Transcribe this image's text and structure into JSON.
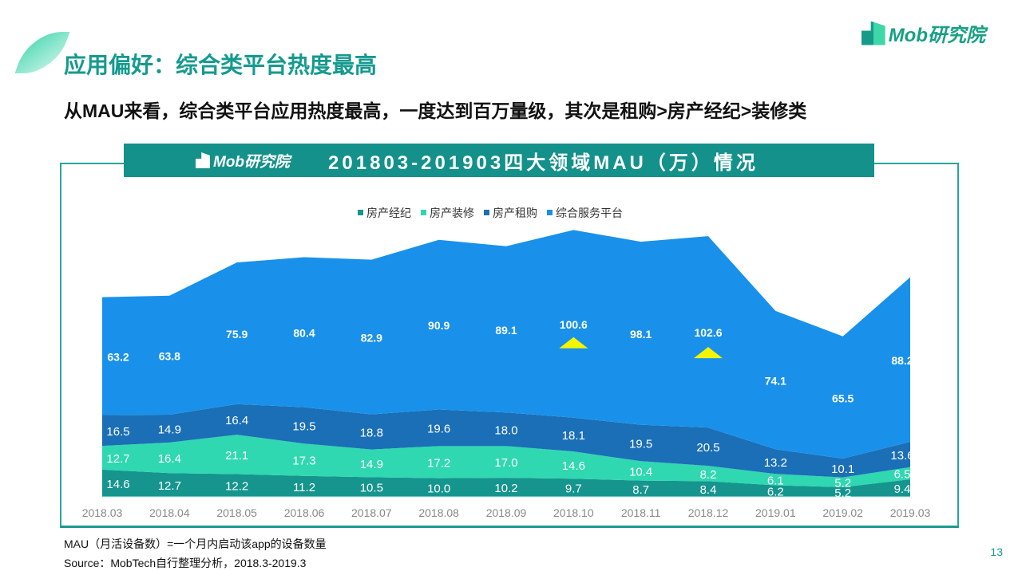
{
  "header": {
    "title": "应用偏好：综合类平台热度最高",
    "subtitle": "从MAU来看，综合类平台应用热度最高，一度达到百万量级，其次是租购>房产经纪>装修类",
    "logo": "Mob研究院"
  },
  "banner": {
    "logo": "Mob研究院",
    "title": "201803-201903四大领域MAU（万）情况"
  },
  "chart_data": {
    "type": "area",
    "stacked": true,
    "title": "201803-201903四大领域MAU（万）情况",
    "categories": [
      "2018.03",
      "2018.04",
      "2018.05",
      "2018.06",
      "2018.07",
      "2018.08",
      "2018.09",
      "2018.10",
      "2018.11",
      "2018.12",
      "2019.01",
      "2019.02",
      "2019.03"
    ],
    "series": [
      {
        "name": "房产经纪",
        "color": "#15958e",
        "values": [
          14.6,
          12.7,
          12.2,
          11.2,
          10.5,
          10.0,
          10.2,
          9.7,
          8.7,
          8.4,
          6.2,
          5.2,
          9.4
        ]
      },
      {
        "name": "房产装修",
        "color": "#2fd8b0",
        "values": [
          12.7,
          16.4,
          21.1,
          17.3,
          14.9,
          17.2,
          17.0,
          14.6,
          10.4,
          8.2,
          6.1,
          5.2,
          6.5
        ]
      },
      {
        "name": "房产租购",
        "color": "#1b6fb6",
        "values": [
          16.5,
          14.9,
          16.4,
          19.5,
          18.8,
          19.6,
          18.0,
          18.1,
          19.5,
          20.5,
          13.2,
          10.1,
          13.6
        ]
      },
      {
        "name": "综合服务平台",
        "color": "#1991ea",
        "values": [
          63.2,
          63.8,
          75.9,
          80.4,
          82.9,
          90.9,
          89.1,
          100.6,
          98.1,
          102.6,
          74.1,
          65.5,
          88.2
        ]
      }
    ],
    "highlight_markers": [
      "2018.10",
      "2018.12"
    ],
    "legend": "top",
    "grid": false
  },
  "footer": {
    "note": "MAU（月活设备数）=一个月内启动该app的设备数量",
    "source": "Source：MobTech自行整理分析，2018.3-2019.3",
    "page": "13"
  }
}
